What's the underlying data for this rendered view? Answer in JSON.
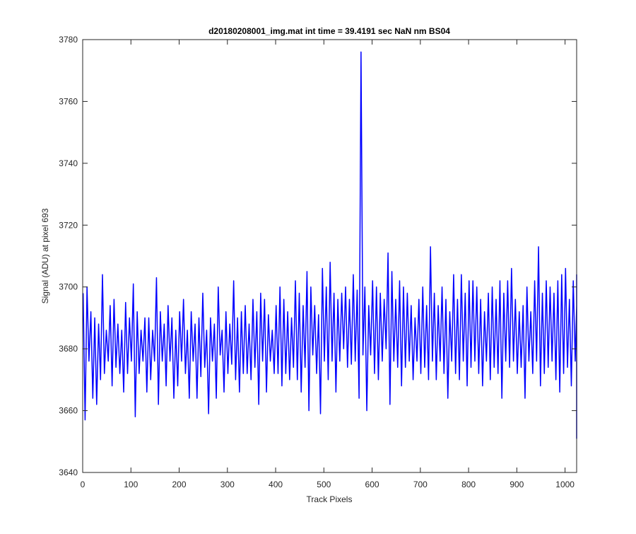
{
  "chart_data": {
    "type": "line",
    "title": "d20180208001_img.mat int time = 39.4191 sec  NaN nm BS04",
    "xlabel": "Track Pixels",
    "ylabel": "Signal (ADU) at pixel 693",
    "xlim": [
      0,
      1024
    ],
    "ylim": [
      3640,
      3780
    ],
    "xticks": [
      0,
      100,
      200,
      300,
      400,
      500,
      600,
      700,
      800,
      900,
      1000
    ],
    "yticks": [
      3640,
      3660,
      3680,
      3700,
      3720,
      3740,
      3760,
      3780
    ],
    "grid": false,
    "colors": {
      "line": "#0000ff",
      "axes": "#262626",
      "background": "#ffffff"
    },
    "series": [
      {
        "x_start": 1,
        "x_step": 4,
        "values": [
          3698,
          3657,
          3700,
          3676,
          3692,
          3664,
          3690,
          3662,
          3688,
          3670,
          3704,
          3672,
          3686,
          3676,
          3694,
          3668,
          3696,
          3674,
          3688,
          3672,
          3686,
          3666,
          3695,
          3672,
          3690,
          3676,
          3701,
          3658,
          3692,
          3672,
          3686,
          3676,
          3690,
          3666,
          3690,
          3670,
          3686,
          3676,
          3703,
          3662,
          3692,
          3676,
          3688,
          3668,
          3694,
          3676,
          3690,
          3664,
          3686,
          3668,
          3692,
          3676,
          3696,
          3672,
          3686,
          3664,
          3692,
          3676,
          3688,
          3664,
          3690,
          3671,
          3698,
          3674,
          3686,
          3659,
          3690,
          3676,
          3688,
          3664,
          3700,
          3678,
          3686,
          3666,
          3692,
          3672,
          3688,
          3675,
          3702,
          3670,
          3690,
          3666,
          3692,
          3672,
          3694,
          3672,
          3688,
          3670,
          3696,
          3674,
          3692,
          3662,
          3698,
          3676,
          3696,
          3666,
          3691,
          3676,
          3686,
          3672,
          3694,
          3672,
          3700,
          3668,
          3696,
          3672,
          3692,
          3670,
          3690,
          3674,
          3702,
          3670,
          3698,
          3666,
          3694,
          3674,
          3705,
          3660,
          3700,
          3678,
          3694,
          3672,
          3691,
          3659,
          3706,
          3676,
          3700,
          3670,
          3708,
          3676,
          3698,
          3666,
          3696,
          3676,
          3698,
          3680,
          3700,
          3674,
          3696,
          3675,
          3704,
          3676,
          3699,
          3664,
          3776,
          3678,
          3700,
          3660,
          3694,
          3678,
          3702,
          3672,
          3700,
          3670,
          3698,
          3676,
          3696,
          3680,
          3711,
          3662,
          3705,
          3676,
          3696,
          3674,
          3702,
          3668,
          3700,
          3674,
          3698,
          3676,
          3694,
          3670,
          3690,
          3676,
          3696,
          3672,
          3700,
          3674,
          3694,
          3670,
          3713,
          3676,
          3698,
          3670,
          3694,
          3676,
          3700,
          3672,
          3696,
          3664,
          3692,
          3676,
          3704,
          3672,
          3696,
          3670,
          3704,
          3676,
          3698,
          3668,
          3702,
          3674,
          3702,
          3676,
          3700,
          3672,
          3696,
          3668,
          3692,
          3676,
          3698,
          3670,
          3700,
          3674,
          3696,
          3672,
          3702,
          3664,
          3698,
          3676,
          3702,
          3674,
          3706,
          3676,
          3696,
          3672,
          3692,
          3674,
          3694,
          3664,
          3700,
          3676,
          3692,
          3672,
          3702,
          3676,
          3713,
          3668,
          3698,
          3672,
          3702,
          3674,
          3700,
          3676,
          3698,
          3670,
          3702,
          3666,
          3704,
          3672,
          3706,
          3674,
          3696,
          3668,
          3702,
          3676,
          3694,
          3651,
          3704,
          3670,
          3698,
          3676,
          3700,
          3672,
          3696
        ]
      }
    ]
  }
}
